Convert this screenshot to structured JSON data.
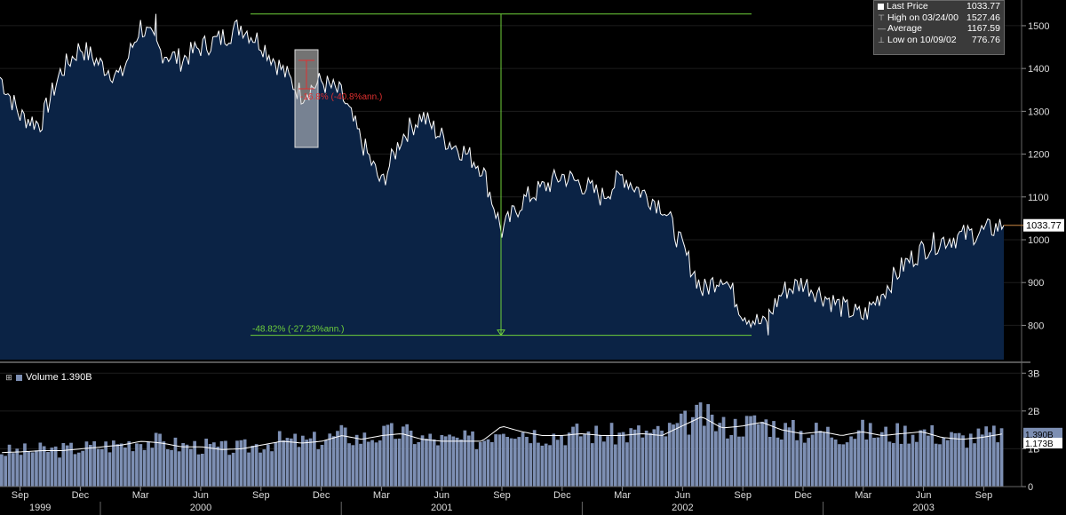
{
  "legend": {
    "last_label": "Last Price",
    "last_value": "1033.77",
    "high_label": "High on 03/24/00",
    "high_value": "1527.46",
    "avg_label": "Average",
    "avg_value": "1167.59",
    "low_label": "Low on 10/09/02",
    "low_value": "776.76"
  },
  "annotations": {
    "drawdown_label": "-48.82% (-27.23%ann.)",
    "small_box_label": "-16.8% (-40.8%ann.)"
  },
  "last_price_tag": "1033.77",
  "volume": {
    "label": "Volume 1.390B",
    "tag_current": "1.390B",
    "tag_average": "1.173B"
  },
  "colors": {
    "background": "#000000",
    "area_fill": "#0b2345",
    "price_line": "#ffffff",
    "volume_bar": "#7d8fb3",
    "annotation_green": "#6fd13b",
    "annotation_red": "#e03030"
  },
  "chart_data": [
    {
      "type": "area",
      "series": [
        {
          "name": "Last Price"
        }
      ],
      "x_ticks": [
        "Sep",
        "Dec",
        "Mar",
        "Jun",
        "Sep",
        "Dec",
        "Mar",
        "Jun",
        "Sep",
        "Dec",
        "Mar",
        "Jun",
        "Sep",
        "Dec",
        "Mar",
        "Jun",
        "Sep"
      ],
      "years": [
        "1999",
        "2000",
        "2001",
        "2002",
        "2003"
      ],
      "y_ticks": [
        800,
        900,
        1000,
        1100,
        1200,
        1300,
        1400,
        1500
      ],
      "ylim": [
        720,
        1560
      ],
      "dates": [
        "1999-08",
        "1999-09",
        "1999-10",
        "1999-11",
        "1999-12",
        "2000-01",
        "2000-02",
        "2000-03",
        "2000-04",
        "2000-05",
        "2000-06",
        "2000-07",
        "2000-08",
        "2000-09",
        "2000-10",
        "2000-11",
        "2000-12",
        "2001-01",
        "2001-02",
        "2001-03",
        "2001-04",
        "2001-05",
        "2001-06",
        "2001-07",
        "2001-08",
        "2001-09",
        "2001-10",
        "2001-11",
        "2001-12",
        "2002-01",
        "2002-02",
        "2002-03",
        "2002-04",
        "2002-05",
        "2002-06",
        "2002-07",
        "2002-08",
        "2002-09",
        "2002-10",
        "2002-11",
        "2002-12",
        "2003-01",
        "2003-02",
        "2003-03",
        "2003-04",
        "2003-05",
        "2003-06",
        "2003-07",
        "2003-08",
        "2003-09",
        "2003-10"
      ],
      "values": [
        1380,
        1290,
        1270,
        1390,
        1450,
        1410,
        1380,
        1500,
        1440,
        1420,
        1450,
        1470,
        1500,
        1460,
        1400,
        1340,
        1370,
        1340,
        1230,
        1130,
        1240,
        1290,
        1240,
        1210,
        1170,
        1020,
        1090,
        1120,
        1150,
        1130,
        1100,
        1150,
        1110,
        1080,
        980,
        880,
        920,
        830,
        800,
        880,
        900,
        870,
        840,
        820,
        880,
        940,
        980,
        1000,
        1010,
        1020,
        1035
      ],
      "high": {
        "date": "2000-03-24",
        "value": 1527.46
      },
      "low": {
        "date": "2002-10-09",
        "value": 776.76
      },
      "average": 1167.59,
      "last": 1033.77
    },
    {
      "type": "bar",
      "series": [
        {
          "name": "Volume",
          "values": [
            0.9,
            0.92,
            0.95,
            0.95,
            1.0,
            1.05,
            1.1,
            1.2,
            1.15,
            1.05,
            1.05,
            0.98,
            1.0,
            1.1,
            1.2,
            1.15,
            1.2,
            1.35,
            1.25,
            1.35,
            1.4,
            1.25,
            1.2,
            1.2,
            1.2,
            1.6,
            1.45,
            1.35,
            1.35,
            1.4,
            1.35,
            1.35,
            1.4,
            1.35,
            1.6,
            1.85,
            1.55,
            1.6,
            1.7,
            1.5,
            1.4,
            1.45,
            1.35,
            1.45,
            1.35,
            1.4,
            1.45,
            1.3,
            1.25,
            1.3,
            1.39
          ]
        }
      ],
      "y_ticks": [
        "0",
        "1B",
        "2B",
        "3B"
      ],
      "ylim": [
        0,
        3.1
      ],
      "current": "1.390B",
      "average": "1.173B"
    }
  ]
}
